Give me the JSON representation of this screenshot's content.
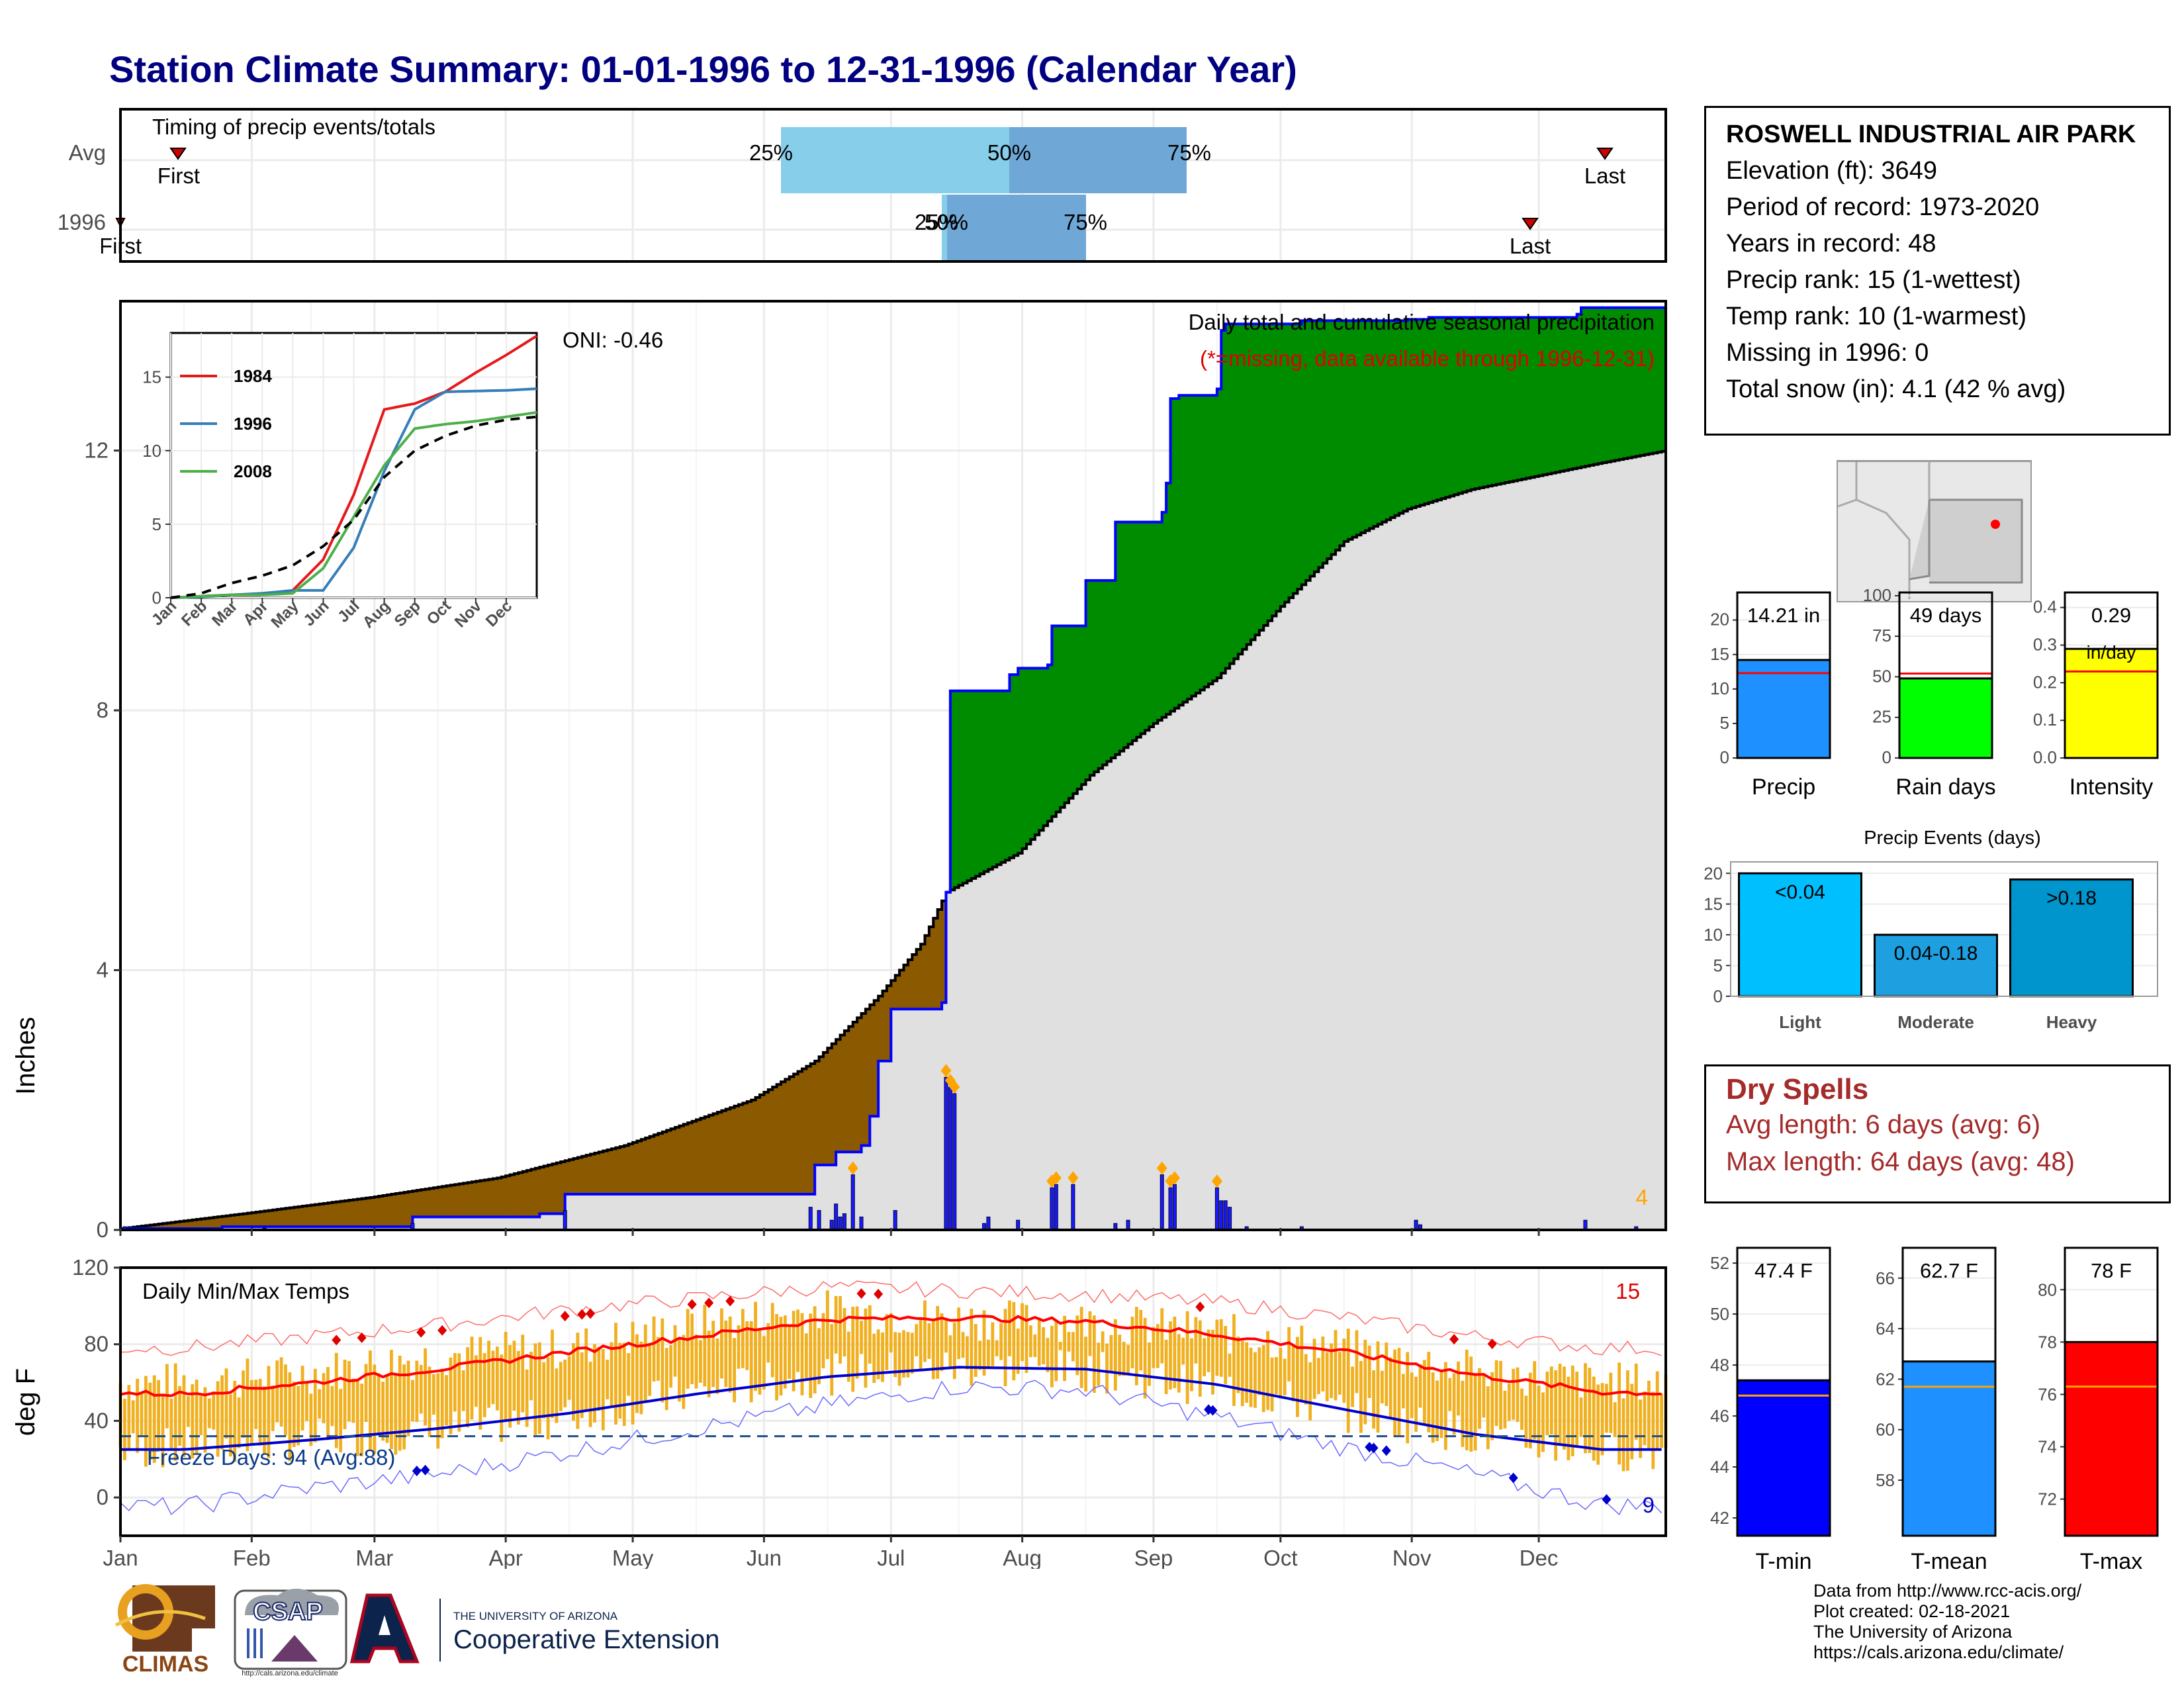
{
  "title": "Station Climate Summary: 01-01-1996 to 12-31-1996 (Calendar Year)",
  "colors": {
    "title": "#000080",
    "deficit_fill": "#8b5a00",
    "surplus_fill": "#008c00",
    "avg_cum_fill": "#e0e0e0",
    "daily_bars": "#1a1aff",
    "tmax": "#ff0000",
    "tmin": "#0000cd",
    "temp_bars": "#f0b020",
    "dry_spells": "#a52a2a"
  },
  "timing": {
    "label": "Timing of precip events/totals",
    "rows": [
      "Avg",
      "1996"
    ],
    "avg": {
      "first": "First",
      "last": "Last",
      "p25": "25%",
      "p50": "50%",
      "p75": "75%"
    },
    "y1996": {
      "first": "First",
      "last": "Last",
      "p25": "25%",
      "p50": "50%",
      "p75": "75%"
    }
  },
  "station": {
    "name": "ROSWELL INDUSTRIAL AIR PARK",
    "elevation": "Elevation (ft): 3649",
    "period": "Period of record: 1973-2020",
    "years": "Years in record: 48",
    "precip_rank": "Precip rank: 15 (1-wettest)",
    "temp_rank": "Temp rank: 10 (1-warmest)",
    "missing": "Missing in 1996: 0",
    "snow": "Total snow (in): 4.1 (42 % avg)"
  },
  "main_chart": {
    "ylabel": "Inches",
    "yticks": [
      "0",
      "4",
      "8",
      "12"
    ],
    "title": "Daily total and cumulative seasonal precipitation",
    "subtitle": "(*=missing, data available through 1996-12-31)",
    "oni": "ONI: -0.46",
    "corner_count": "4"
  },
  "inset": {
    "yticks": [
      "0",
      "5",
      "10",
      "15"
    ],
    "months": [
      "Jan",
      "Feb",
      "Mar",
      "Apr",
      "May",
      "Jun",
      "Jul",
      "Aug",
      "Sep",
      "Oct",
      "Nov",
      "Dec"
    ],
    "legend": [
      "1984",
      "1996",
      "2008"
    ]
  },
  "months": [
    "Jan",
    "Feb",
    "Mar",
    "Apr",
    "May",
    "Jun",
    "Jul",
    "Aug",
    "Sep",
    "Oct",
    "Nov",
    "Dec"
  ],
  "temp_chart": {
    "ylabel": "deg F",
    "yticks": [
      "0",
      "40",
      "80",
      "120"
    ],
    "title": "Daily Min/Max Temps",
    "freeze": "Freeze Days: 94 (Avg:88)",
    "high_count": "15",
    "low_count": "9"
  },
  "mini_bars": [
    {
      "label": "Precip",
      "value_text": "14.21 in",
      "yticks": [
        "0",
        "5",
        "10",
        "15",
        "20"
      ]
    },
    {
      "label": "Rain days",
      "value_text": "49 days",
      "yticks": [
        "0",
        "25",
        "50",
        "75",
        "100"
      ]
    },
    {
      "label": "Intensity",
      "value_text": "0.29 in/day",
      "yticks": [
        "0.0",
        "0.1",
        "0.2",
        "0.3",
        "0.4"
      ]
    }
  ],
  "events": {
    "title": "Precip Events (days)",
    "yticks": [
      "0",
      "5",
      "10",
      "15",
      "20"
    ],
    "categories": [
      "Light",
      "Moderate",
      "Heavy"
    ],
    "labels": [
      "<0.04",
      "0.04-0.18",
      ">0.18"
    ]
  },
  "dry_spells": {
    "title": "Dry Spells",
    "avg": "Avg length: 6 days (avg: 6)",
    "max": "Max length: 64 days (avg: 48)"
  },
  "temp_bars": [
    {
      "label": "T-min",
      "value_text": "47.4 F",
      "yticks": [
        "42",
        "44",
        "46",
        "48",
        "50",
        "52"
      ]
    },
    {
      "label": "T-mean",
      "value_text": "62.7 F",
      "yticks": [
        "58",
        "60",
        "62",
        "64",
        "66"
      ]
    },
    {
      "label": "T-max",
      "value_text": "78 F",
      "yticks": [
        "72",
        "74",
        "76",
        "78",
        "80"
      ]
    }
  ],
  "credits": {
    "line1": "Data from http://www.rcc-acis.org/",
    "line2": "Plot created: 02-18-2021",
    "line3": "The University of Arizona",
    "line4": "https://cals.arizona.edu/climate/"
  },
  "logos": {
    "climas": "CLIMAS",
    "csap": "CSAP",
    "csap_url": "http://cals.arizona.edu/climate",
    "ua_small": "THE UNIVERSITY OF ARIZONA",
    "ua_big": "Cooperative Extension"
  },
  "chart_data": [
    {
      "type": "area",
      "title": "Daily total and cumulative seasonal precipitation",
      "ylabel": "Inches",
      "ylim": [
        0,
        14
      ],
      "x_unit": "day of year",
      "series": [
        {
          "name": "1996",
          "points": [
            [
              1,
              0.02
            ],
            [
              25,
              0.05
            ],
            [
              36,
              0.05
            ],
            [
              70,
              0.2
            ],
            [
              100,
              0.25
            ],
            [
              106,
              0.55
            ],
            [
              163,
              0.55
            ],
            [
              165,
              1.0
            ],
            [
              170,
              1.2
            ],
            [
              176,
              1.3
            ],
            [
              178,
              1.75
            ],
            [
              180,
              2.6
            ],
            [
              183,
              3.4
            ],
            [
              195,
              3.5
            ],
            [
              196,
              5.2
            ],
            [
              197,
              8.3
            ],
            [
              211,
              8.55
            ],
            [
              213,
              8.65
            ],
            [
              220,
              8.7
            ],
            [
              221,
              9.3
            ],
            [
              229,
              10.0
            ],
            [
              236,
              10.9
            ],
            [
              247,
              11.05
            ],
            [
              248,
              11.5
            ],
            [
              249,
              12.8
            ],
            [
              251,
              12.85
            ],
            [
              260,
              12.95
            ],
            [
              261,
              13.85
            ],
            [
              262,
              13.95
            ],
            [
              280,
              14.0
            ],
            [
              305,
              14.02
            ],
            [
              310,
              14.05
            ],
            [
              345,
              14.1
            ],
            [
              346,
              14.2
            ],
            [
              366,
              14.21
            ]
          ]
        },
        {
          "points": [
            [
              1,
              0.02
            ],
            [
              30,
              0.25
            ],
            [
              60,
              0.5
            ],
            [
              90,
              0.8
            ],
            [
              120,
              1.3
            ],
            [
              150,
              2.0
            ],
            [
              165,
              2.6
            ],
            [
              180,
              3.6
            ],
            [
              190,
              4.4
            ],
            [
              196,
              5.2
            ],
            [
              213,
              5.8
            ],
            [
              230,
              7.0
            ],
            [
              245,
              7.8
            ],
            [
              260,
              8.5
            ],
            [
              275,
              9.6
            ],
            [
              290,
              10.6
            ],
            [
              305,
              11.1
            ],
            [
              320,
              11.4
            ],
            [
              335,
              11.6
            ],
            [
              350,
              11.8
            ],
            [
              366,
              12.0
            ]
          ]
        }
      ],
      "daily_bars": [
        [
          2,
          0.05
        ],
        [
          35,
          0.03
        ],
        [
          70,
          0.1
        ],
        [
          106,
          0.3
        ],
        [
          164,
          0.35
        ],
        [
          166,
          0.3
        ],
        [
          169,
          0.15
        ],
        [
          170,
          0.4
        ],
        [
          171,
          0.2
        ],
        [
          172,
          0.25
        ],
        [
          174,
          0.85
        ],
        [
          176,
          0.2
        ],
        [
          184,
          0.3
        ],
        [
          196,
          2.35
        ],
        [
          197,
          2.2
        ],
        [
          198,
          2.1
        ],
        [
          205,
          0.1
        ],
        [
          206,
          0.2
        ],
        [
          213,
          0.15
        ],
        [
          221,
          0.65
        ],
        [
          222,
          0.7
        ],
        [
          226,
          0.7
        ],
        [
          236,
          0.1
        ],
        [
          239,
          0.15
        ],
        [
          247,
          0.85
        ],
        [
          249,
          0.65
        ],
        [
          250,
          0.7
        ],
        [
          260,
          0.65
        ],
        [
          261,
          0.45
        ],
        [
          262,
          0.45
        ],
        [
          263,
          0.35
        ],
        [
          267,
          0.05
        ],
        [
          280,
          0.05
        ],
        [
          307,
          0.15
        ],
        [
          308,
          0.08
        ],
        [
          347,
          0.15
        ],
        [
          359,
          0.05
        ]
      ]
    },
    {
      "type": "line",
      "inset": true,
      "yticks": [
        0,
        5,
        10,
        15
      ],
      "x": [
        "Jan",
        "Feb",
        "Mar",
        "Apr",
        "May",
        "Jun",
        "Jul",
        "Aug",
        "Sep",
        "Oct",
        "Nov",
        "Dec",
        "end"
      ],
      "series": [
        {
          "name": "1984",
          "values": [
            0,
            0.1,
            0.2,
            0.2,
            0.5,
            2.6,
            7.0,
            12.8,
            13.2,
            14.0,
            15.3,
            16.5,
            17.8
          ]
        },
        {
          "name": "1996",
          "values": [
            0,
            0.05,
            0.2,
            0.3,
            0.5,
            0.5,
            3.4,
            8.6,
            12.8,
            14.0,
            14.05,
            14.1,
            14.21
          ]
        },
        {
          "name": "2008",
          "values": [
            0,
            0.1,
            0.2,
            0.2,
            0.3,
            2.0,
            5.5,
            9.0,
            11.5,
            11.8,
            12.0,
            12.3,
            12.6
          ]
        },
        {
          "values": [
            0,
            0.3,
            1.0,
            1.5,
            2.2,
            3.5,
            5.3,
            8.2,
            10.0,
            11.0,
            11.7,
            12.1,
            12.3
          ]
        }
      ]
    },
    {
      "type": "line",
      "title": "Daily Min/Max Temps",
      "ylabel": "deg F",
      "ylim": [
        -20,
        120
      ],
      "months": [
        "Jan",
        "Feb",
        "Mar",
        "Apr",
        "May",
        "Jun",
        "Jul",
        "Aug",
        "Sep",
        "Oct",
        "Nov",
        "Dec"
      ],
      "normal_max": [
        54,
        60,
        67,
        76,
        84,
        93,
        94,
        92,
        85,
        76,
        64,
        55
      ],
      "normal_min": [
        25,
        30,
        36,
        44,
        54,
        63,
        68,
        67,
        59,
        46,
        33,
        25
      ],
      "record_max": [
        78,
        84,
        90,
        98,
        104,
        110,
        108,
        106,
        102,
        94,
        84,
        78
      ],
      "record_min": [
        -5,
        5,
        12,
        24,
        36,
        48,
        58,
        56,
        42,
        26,
        12,
        -4
      ],
      "observed_max": [
        60,
        65,
        74,
        78,
        90,
        98,
        93,
        92,
        86,
        78,
        66,
        60
      ],
      "observed_min": [
        26,
        30,
        35,
        42,
        55,
        64,
        68,
        66,
        58,
        45,
        33,
        24
      ],
      "freeze_line": 32
    },
    {
      "type": "bar",
      "categories": [
        "Precip"
      ],
      "values": [
        14.21
      ],
      "normal": 12.3,
      "ylim": [
        0,
        24
      ]
    },
    {
      "type": "bar",
      "categories": [
        "Rain days"
      ],
      "values": [
        49
      ],
      "normal": 52,
      "ylim": [
        0,
        102
      ]
    },
    {
      "type": "bar",
      "categories": [
        "Intensity"
      ],
      "values": [
        0.29
      ],
      "normal": 0.23,
      "ylim": [
        0,
        0.44
      ]
    },
    {
      "type": "bar",
      "title": "Precip Events (days)",
      "categories": [
        "Light",
        "Moderate",
        "Heavy"
      ],
      "values": [
        20,
        10,
        19
      ],
      "ylim": [
        0,
        21
      ]
    },
    {
      "type": "bar",
      "categories": [
        "T-min"
      ],
      "values": [
        47.4
      ],
      "normal": 46.8,
      "ylim": [
        41.3,
        52.6
      ]
    },
    {
      "type": "bar",
      "categories": [
        "T-mean"
      ],
      "values": [
        62.7
      ],
      "normal": 61.7,
      "ylim": [
        55.8,
        67.2
      ]
    },
    {
      "type": "bar",
      "categories": [
        "T-max"
      ],
      "values": [
        78
      ],
      "normal": 76.3,
      "ylim": [
        70.6,
        81.6
      ]
    }
  ]
}
